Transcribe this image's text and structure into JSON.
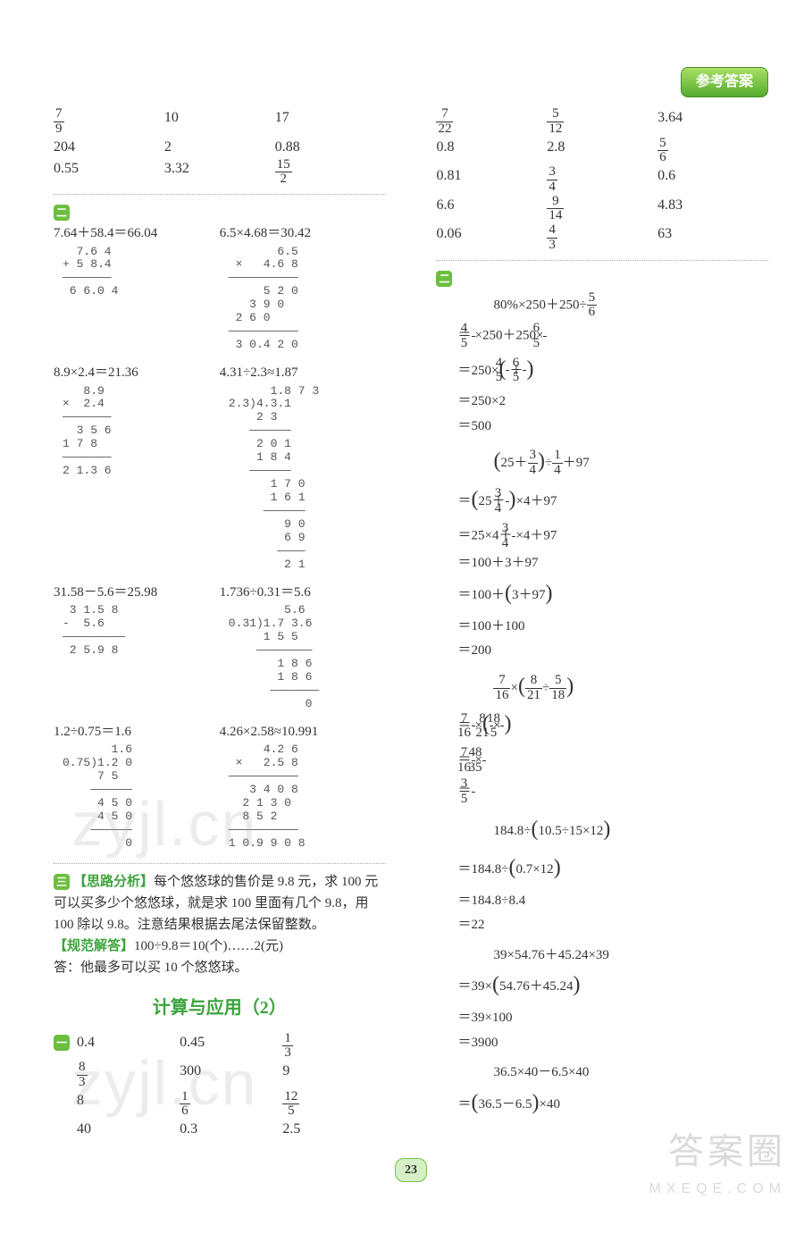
{
  "header": {
    "badge": "参考答案"
  },
  "page_number": "23",
  "colors": {
    "green": "#3ca43c",
    "badge_gradient": [
      "#a8e063",
      "#56ab2f"
    ],
    "divider": "#7bbf4a",
    "text": "#333333",
    "watermark": "rgba(150,150,150,0.2)"
  },
  "font": {
    "family": "SimSun / STSong",
    "size_pt": 12,
    "title_size_pt": 16
  },
  "left_column": {
    "grid1": {
      "type": "table",
      "cols": 3,
      "cells": [
        [
          "{frac}7/9",
          "10",
          "17"
        ],
        [
          "204",
          "2",
          "0.88"
        ],
        [
          "0.55",
          "3.32",
          "{frac}15/2"
        ]
      ]
    },
    "section2": {
      "bullet": "二",
      "problems": [
        {
          "lhs": "7.64＋58.4＝66.04",
          "rhs": "6.5×4.68＝30.42",
          "work_l": "  7.6 4\n+ 5 8.4\n———————\n 6 6.0 4",
          "work_r": "       6.5\n ×   4.6 8\n——————————\n     5 2 0\n   3 9 0\n 2 6 0\n——————————\n 3 0.4 2 0"
        },
        {
          "lhs": "8.9×2.4＝21.36",
          "rhs": "4.31÷2.3≈1.87",
          "work_l": "   8.9\n×  2.4\n———————\n  3 5 6\n1 7 8\n———————\n2 1.3 6",
          "work_r": "      1.8 7 3\n2.3)4.3.1\n    2 3\n   ——————\n    2 0 1\n    1 8 4\n   ——————\n      1 7 0\n      1 6 1\n     ——————\n        9 0\n        6 9\n       ————\n        2 1"
        },
        {
          "lhs": "31.58－5.6＝25.98",
          "rhs": "1.736÷0.31＝5.6",
          "work_l": " 3 1.5 8\n-  5.6\n—————————\n 2 5.9 8",
          "work_r": "        5.6\n0.31)1.7 3.6\n     1 5 5\n    ————————\n       1 8 6\n       1 8 6\n      ———————\n           0"
        },
        {
          "lhs": "1.2÷0.75＝1.6",
          "rhs": "4.26×2.58≈10.991",
          "work_l": "       1.6\n0.75)1.2 0\n     7 5\n    ——————\n     4 5 0\n     4 5 0\n    ——————\n         0",
          "work_r": "     4.2 6\n ×   2.5 8\n——————————\n   3 4 0 8\n  2 1 3 0\n  8 5 2\n——————————\n1 0.9 9 0 8"
        }
      ]
    },
    "section3": {
      "bullet": "三",
      "label_analysis": "【思路分析】",
      "analysis": "每个悠悠球的售价是 9.8 元，求 100 元可以买多少个悠悠球，就是求 100 里面有几个 9.8，用 100 除以 9.8。注意结果根据去尾法保留整数。",
      "label_solution": "【规范解答】",
      "solution": "100÷9.8＝10(个)……2(元)",
      "answer": "答：他最多可以买 10 个悠悠球。"
    },
    "next_section_title": "计算与应用（2）",
    "section_next1": {
      "bullet": "一",
      "grid": {
        "type": "table",
        "cols": 3,
        "cells": [
          [
            "0.4",
            "0.45",
            "{frac}1/3"
          ],
          [
            "{frac}8/3",
            "300",
            "9"
          ],
          [
            "8",
            "{frac}1/6",
            "{frac}12/5"
          ],
          [
            "40",
            "0.3",
            "2.5"
          ]
        ]
      }
    }
  },
  "right_column": {
    "grid": {
      "type": "table",
      "cols": 3,
      "cells": [
        [
          "{frac}7/22",
          "{frac}5/12",
          "3.64"
        ],
        [
          "0.8",
          "2.8",
          "{frac}5/6"
        ],
        [
          "0.81",
          "{frac}3/4",
          "0.6"
        ],
        [
          "6.6",
          "{frac}9/14",
          "4.83"
        ],
        [
          "0.06",
          "{frac}4/3",
          "63"
        ]
      ]
    },
    "section2": {
      "bullet": "二",
      "blocks": [
        {
          "head": "80%×250＋250÷{frac}5/6",
          "steps": [
            "＝{frac}4/5×250＋250×{frac}6/5",
            "＝250×({frac}4/5＋{frac}6/5)",
            "＝250×2",
            "＝500"
          ]
        },
        {
          "head": "(25＋{frac}3/4)÷{frac}1/4＋97",
          "steps": [
            "＝(25＋{frac}3/4)×4＋97",
            "＝25×4＋{frac}3/4×4＋97",
            "＝100＋3＋97",
            "＝100＋(3＋97)",
            "＝100＋100",
            "＝200"
          ]
        },
        {
          "head": "{frac}7/16×({frac}8/21÷{frac}5/18)",
          "steps": [
            "＝{frac}7/16×({frac}8/21×{frac}18/5)",
            "＝{frac}7/16×{frac}48/35",
            "＝{frac}3/5"
          ]
        },
        {
          "head": "184.8÷(10.5÷15×12)",
          "steps": [
            "＝184.8÷(0.7×12)",
            "＝184.8÷8.4",
            "＝22"
          ]
        },
        {
          "head": "39×54.76＋45.24×39",
          "steps": [
            "＝39×(54.76＋45.24)",
            "＝39×100",
            "＝3900"
          ]
        },
        {
          "head": "36.5×40－6.5×40",
          "steps": [
            "＝(36.5－6.5)×40"
          ]
        }
      ]
    }
  },
  "watermarks": {
    "mid1": "zyjl.cn",
    "mid2": "zyjl.cn",
    "corner_top": "答案圈",
    "corner_bottom": "MXEQE.COM"
  }
}
